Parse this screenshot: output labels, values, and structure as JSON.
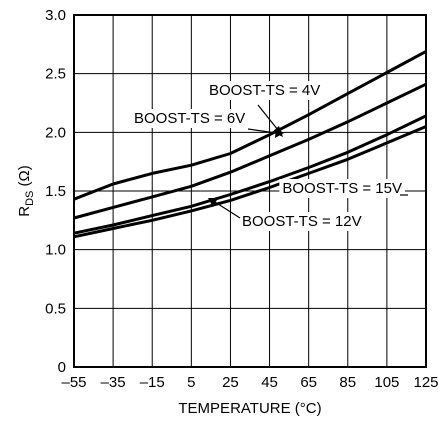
{
  "chart_data": {
    "type": "line",
    "xlabel": "TEMPERATURE (°C)",
    "ylabel": "R",
    "ylabel_sub": "DS",
    "ylabel_unit": " (Ω)",
    "xlim": [
      -55,
      125
    ],
    "ylim": [
      0,
      3.0
    ],
    "grid": true,
    "x_ticks": [
      -55,
      -35,
      -15,
      5,
      25,
      45,
      65,
      85,
      105,
      125
    ],
    "x_tick_labels": [
      "–55",
      "–35",
      "–15",
      "5",
      "25",
      "45",
      "65",
      "85",
      "105",
      "125"
    ],
    "y_ticks": [
      0,
      0.5,
      1.0,
      1.5,
      2.0,
      2.5,
      3.0
    ],
    "y_tick_labels": [
      "0",
      "0.5",
      "1.0",
      "1.5",
      "2.0",
      "2.5",
      "3.0"
    ],
    "series": [
      {
        "name": "BOOST-TS = 4V",
        "x": [
          -55,
          -35,
          -15,
          5,
          25,
          45,
          65,
          85,
          105,
          125
        ],
        "y": [
          1.43,
          1.56,
          1.65,
          1.72,
          1.82,
          1.98,
          2.15,
          2.33,
          2.51,
          2.69
        ]
      },
      {
        "name": "BOOST-TS = 6V",
        "x": [
          -55,
          -35,
          -15,
          5,
          25,
          45,
          65,
          85,
          105,
          125
        ],
        "y": [
          1.27,
          1.36,
          1.45,
          1.54,
          1.66,
          1.8,
          1.94,
          2.09,
          2.25,
          2.41
        ]
      },
      {
        "name": "BOOST-TS = 15V",
        "x": [
          -55,
          -35,
          -15,
          5,
          25,
          45,
          65,
          85,
          105,
          125
        ],
        "y": [
          1.14,
          1.21,
          1.29,
          1.37,
          1.47,
          1.58,
          1.7,
          1.83,
          1.98,
          2.14
        ]
      },
      {
        "name": "BOOST-TS = 12V",
        "x": [
          -55,
          -35,
          -15,
          5,
          25,
          45,
          65,
          85,
          105,
          125
        ],
        "y": [
          1.11,
          1.18,
          1.25,
          1.33,
          1.42,
          1.53,
          1.65,
          1.77,
          1.91,
          2.05
        ]
      }
    ],
    "annotations": [
      {
        "text": "BOOST-TS = 4V",
        "series": 0
      },
      {
        "text": "BOOST-TS = 6V",
        "series": 1
      },
      {
        "text": "BOOST-TS = 15V",
        "series": 2
      },
      {
        "text": "BOOST-TS = 12V",
        "series": 3
      }
    ]
  }
}
